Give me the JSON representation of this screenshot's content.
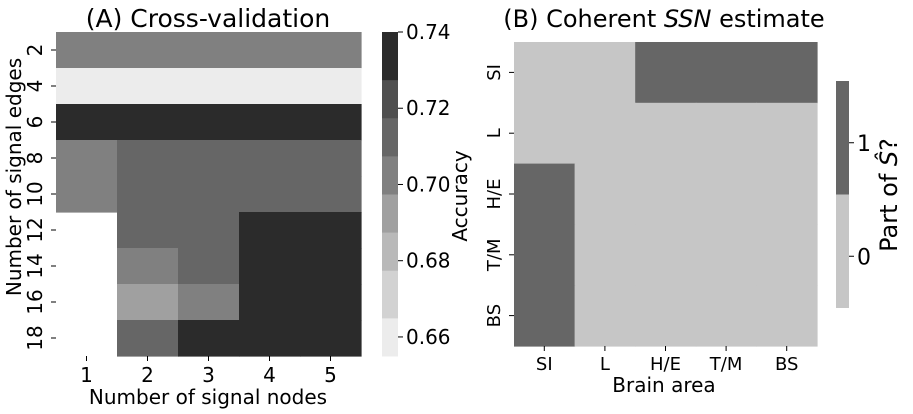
{
  "chart_data": [
    {
      "type": "heatmap",
      "title": "(A) Cross-validation",
      "xlabel": "Number of signal nodes",
      "ylabel": "Number of signal edges",
      "x": [
        "1",
        "2",
        "3",
        "4",
        "5"
      ],
      "y": [
        "2",
        "4",
        "6",
        "8",
        "10",
        "12",
        "14",
        "16",
        "18"
      ],
      "values": [
        [
          0.7,
          0.7,
          0.7,
          0.7,
          0.7
        ],
        [
          0.66,
          0.66,
          0.66,
          0.66,
          0.66
        ],
        [
          0.73,
          0.73,
          0.73,
          0.73,
          0.73
        ],
        [
          0.7,
          0.71,
          0.71,
          0.71,
          0.71
        ],
        [
          0.7,
          0.71,
          0.71,
          0.71,
          0.71
        ],
        [
          null,
          0.71,
          0.71,
          0.73,
          0.73
        ],
        [
          null,
          0.7,
          0.71,
          0.73,
          0.73
        ],
        [
          null,
          0.69,
          0.7,
          0.73,
          0.73
        ],
        [
          null,
          0.71,
          0.73,
          0.73,
          0.73
        ]
      ],
      "colorbar": {
        "label": "Accuracy",
        "range": [
          0.655,
          0.74
        ],
        "ticks": [
          "0.66",
          "0.68",
          "0.70",
          "0.72",
          "0.74"
        ],
        "tick_values": [
          0.66,
          0.68,
          0.7,
          0.72,
          0.74
        ],
        "band_edges": [
          0.655,
          0.665,
          0.6775,
          0.6875,
          0.6975,
          0.7075,
          0.7175,
          0.7275,
          0.74
        ],
        "band_colors": [
          "#ececec",
          "#d2d2d2",
          "#b9b9b9",
          "#a0a0a0",
          "#808080",
          "#666666",
          "#4f4f4f",
          "#2b2b2b"
        ]
      }
    },
    {
      "type": "heatmap",
      "title_prefix": "(B) Coherent ",
      "title_italic": "SSN",
      "title_suffix": " estimate",
      "xlabel": "Brain area",
      "ylabel": "",
      "x": [
        "SI",
        "L",
        "H/E",
        "T/M",
        "BS"
      ],
      "y": [
        "SI",
        "L",
        "H/E",
        "T/M",
        "BS"
      ],
      "values": [
        [
          0,
          0,
          1,
          1,
          1
        ],
        [
          0,
          0,
          0,
          0,
          0
        ],
        [
          1,
          0,
          0,
          0,
          0
        ],
        [
          1,
          0,
          0,
          0,
          0
        ],
        [
          1,
          0,
          0,
          0,
          0
        ]
      ],
      "colorbar": {
        "label_prefix": "Part of ",
        "label_symbol": "Ŝ",
        "label_suffix": "?",
        "ticks": [
          "0",
          "1"
        ],
        "colors": {
          "0": "#c6c6c6",
          "1": "#666666"
        }
      }
    }
  ]
}
